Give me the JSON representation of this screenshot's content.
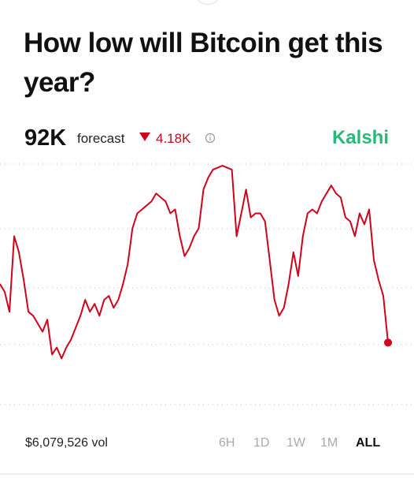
{
  "header": {
    "title": "How low will Bitcoin get this year?",
    "forecast": "92K",
    "forecast_label": "forecast",
    "change": "4.18K",
    "brand": "Kalshi"
  },
  "chart_data": {
    "type": "line",
    "color": "#d0021b",
    "ylim": [
      85,
      110
    ],
    "values": [
      97.7,
      96.9,
      94.9,
      102.5,
      100.9,
      98.1,
      94.9,
      94.5,
      93.7,
      92.9,
      94.1,
      90.6,
      91.3,
      90.2,
      91.3,
      92.1,
      93.3,
      94.5,
      96.1,
      94.9,
      95.7,
      94.5,
      96.1,
      96.5,
      95.3,
      96.1,
      97.7,
      99.7,
      103.3,
      104.8,
      105.2,
      105.6,
      106.0,
      106.8,
      106.4,
      106.0,
      104.8,
      105.2,
      102.5,
      100.5,
      101.3,
      102.5,
      103.3,
      107.2,
      108.4,
      109.2,
      109.4,
      109.6,
      109.4,
      109.2,
      102.5,
      104.8,
      107.2,
      104.4,
      104.8,
      104.8,
      104.0,
      100.1,
      96.1,
      94.5,
      95.3,
      97.7,
      100.9,
      98.5,
      102.5,
      104.8,
      105.2,
      104.8,
      106.0,
      106.8,
      107.6,
      106.8,
      106.4,
      104.4,
      104.0,
      102.5,
      104.8,
      103.7,
      105.2,
      100.1,
      98.1,
      96.5,
      91.8
    ]
  },
  "footer": {
    "volume": "$6,079,526 vol",
    "ranges": [
      "6H",
      "1D",
      "1W",
      "1M",
      "ALL"
    ],
    "selected_range": "ALL"
  }
}
